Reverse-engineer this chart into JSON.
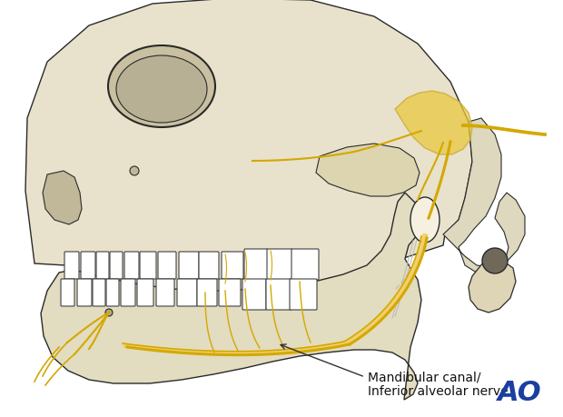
{
  "background_color": "#ffffff",
  "skull_fill": "#e8e2cc",
  "skull_stroke": "#2a2a2a",
  "nerve_color": "#d4a800",
  "nerve_pale": "#f0d070",
  "text_label": "Mandibular canal/\nInferior alveolar nerve",
  "ao_text": "AO",
  "ao_color": "#1a3fa0",
  "label_fontsize": 10,
  "ao_fontsize": 22,
  "figsize": [
    6.2,
    4.59
  ],
  "dpi": 100
}
